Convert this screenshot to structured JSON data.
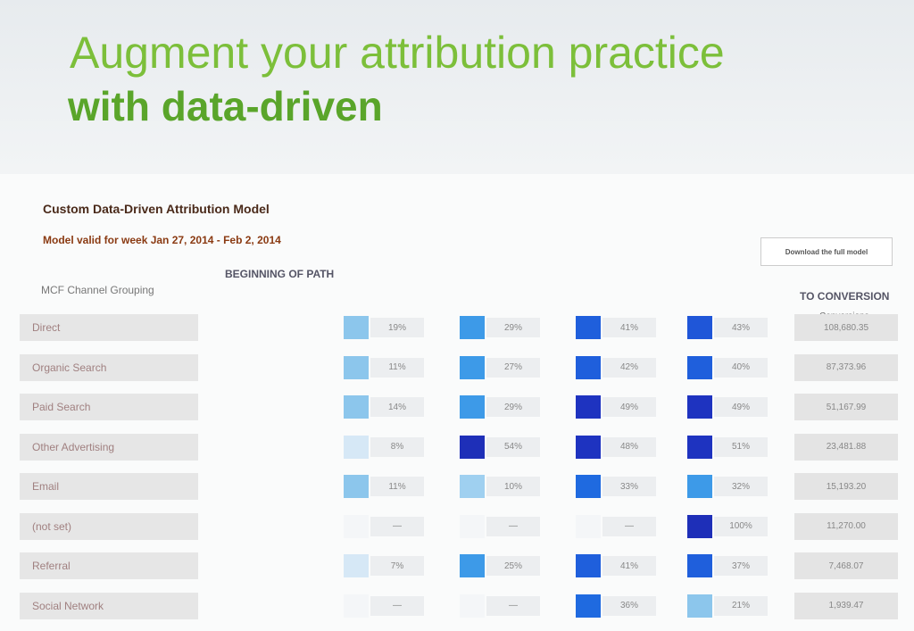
{
  "slide": {
    "title_line1": "Augment your attribution practice",
    "title_line2": "with data-driven"
  },
  "report": {
    "title": "Custom Data-Driven Attribution Model",
    "subtitle": "Model valid for week Jan 27, 2014 - Feb 2, 2014",
    "button": "Download the full model",
    "path_header": "BEGINNING OF PATH",
    "channel_header": "MCF Channel Grouping",
    "conversion_header": "TO CONVERSION",
    "conversions_label": "Conversions"
  },
  "table": {
    "rows": [
      {
        "channel": "Direct",
        "cells": [
          {
            "label": "19%",
            "color": "#8cc6ec"
          },
          {
            "label": "29%",
            "color": "#3d9ae8"
          },
          {
            "label": "41%",
            "color": "#1f5fdc"
          },
          {
            "label": "43%",
            "color": "#1f56d8"
          }
        ],
        "conversions": "108,680.35"
      },
      {
        "channel": "Organic Search",
        "cells": [
          {
            "label": "11%",
            "color": "#8cc6ec"
          },
          {
            "label": "27%",
            "color": "#3d9ae8"
          },
          {
            "label": "42%",
            "color": "#1f5fdc"
          },
          {
            "label": "40%",
            "color": "#1f5fdc"
          }
        ],
        "conversions": "87,373.96"
      },
      {
        "channel": "Paid Search",
        "cells": [
          {
            "label": "14%",
            "color": "#8cc6ec"
          },
          {
            "label": "29%",
            "color": "#3d9ae8"
          },
          {
            "label": "49%",
            "color": "#1e33c0"
          },
          {
            "label": "49%",
            "color": "#1e33c0"
          }
        ],
        "conversions": "51,167.99"
      },
      {
        "channel": "Other Advertising",
        "cells": [
          {
            "label": "8%",
            "color": "#d6e8f6"
          },
          {
            "label": "54%",
            "color": "#1e2fb8"
          },
          {
            "label": "48%",
            "color": "#1e33c0"
          },
          {
            "label": "51%",
            "color": "#1e33c0"
          }
        ],
        "conversions": "23,481.88"
      },
      {
        "channel": "Email",
        "cells": [
          {
            "label": "11%",
            "color": "#8cc6ec"
          },
          {
            "label": "10%",
            "color": "#9fd0f0"
          },
          {
            "label": "33%",
            "color": "#1f6ae0"
          },
          {
            "label": "32%",
            "color": "#3d9ae8"
          }
        ],
        "conversions": "15,193.20"
      },
      {
        "channel": "(not set)",
        "cells": [
          {
            "label": "—",
            "color": "#f4f6f8"
          },
          {
            "label": "—",
            "color": "#f4f6f8"
          },
          {
            "label": "—",
            "color": "#f4f6f8"
          },
          {
            "label": "100%",
            "color": "#1e2fb8"
          }
        ],
        "conversions": "11,270.00"
      },
      {
        "channel": "Referral",
        "cells": [
          {
            "label": "7%",
            "color": "#d6e8f6"
          },
          {
            "label": "25%",
            "color": "#3d9ae8"
          },
          {
            "label": "41%",
            "color": "#1f5fdc"
          },
          {
            "label": "37%",
            "color": "#1f5fdc"
          }
        ],
        "conversions": "7,468.07"
      },
      {
        "channel": "Social Network",
        "cells": [
          {
            "label": "—",
            "color": "#f4f6f8"
          },
          {
            "label": "—",
            "color": "#f4f6f8"
          },
          {
            "label": "36%",
            "color": "#1f6ae0"
          },
          {
            "label": "21%",
            "color": "#8cc6ec"
          }
        ],
        "conversions": "1,939.47"
      }
    ]
  }
}
